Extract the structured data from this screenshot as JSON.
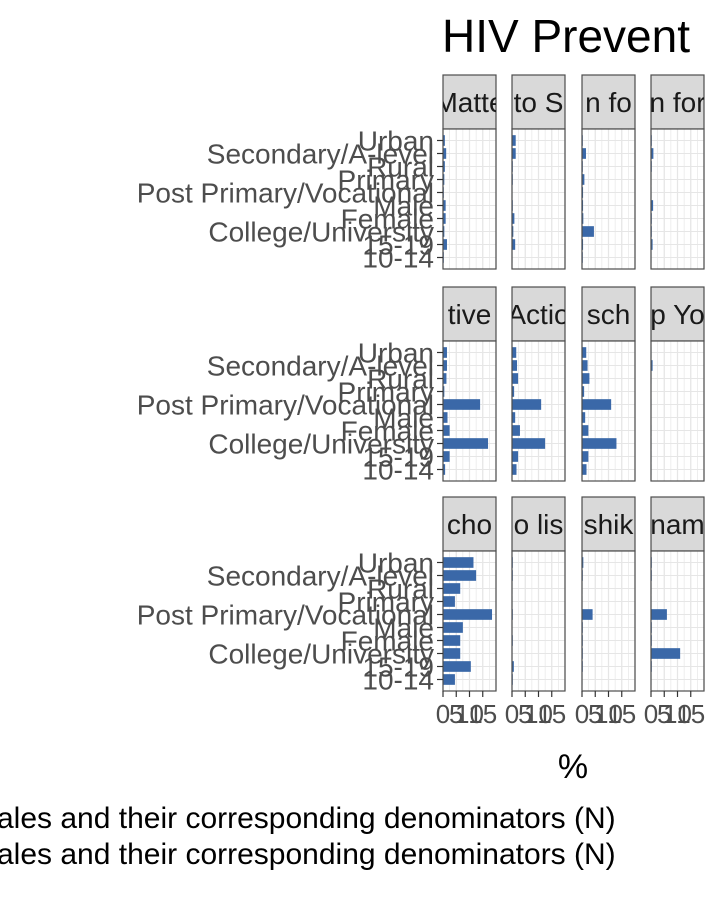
{
  "title": "HIV Prevent",
  "xlabel": "%",
  "caption_lines": [
    "ales and their corresponding denominators (N)",
    "ales and their corresponding denominators (N)"
  ],
  "colors": {
    "bar": "#3a68a8",
    "panel_bg": "#ffffff",
    "grid": "#e6e6e6",
    "panel_border": "#4d4d4d",
    "strip_bg": "#d9d9d9",
    "text": "#4d4d4d"
  },
  "chart_data": {
    "type": "bar",
    "orientation": "horizontal",
    "faceted": true,
    "grid": true,
    "xlim": [
      0,
      20
    ],
    "x_ticks": [
      "0",
      "5",
      "10",
      "15"
    ],
    "categories": [
      "Urban",
      "Secondary/A-level",
      "Rural",
      "Primary",
      "Post Primary/Vocational",
      "Male",
      "Female",
      "College/University",
      "15-19",
      "10-14"
    ],
    "category_labels_shown": [
      "Urban",
      "Secondary/A-level",
      "Rural",
      "Primary",
      "Post Primary/Vocational",
      "Male",
      "Female",
      "College/University",
      "15-19",
      "10-14"
    ],
    "panels": [
      {
        "strip": "Matte",
        "values": [
          0.7,
          1.2,
          0.7,
          0.5,
          0.3,
          1.0,
          1.0,
          0.5,
          1.5,
          0.3
        ]
      },
      {
        "strip": "to S",
        "values": [
          1.4,
          1.4,
          0.3,
          0.3,
          0.2,
          0.3,
          0.9,
          0.5,
          1.2,
          0.2
        ]
      },
      {
        "strip": "n fo",
        "values": [
          0.3,
          1.5,
          0.3,
          0.9,
          0.4,
          0.4,
          0.5,
          4.5,
          0.4,
          0.3
        ]
      },
      {
        "strip": "n for",
        "values": [
          0.3,
          0.9,
          0.3,
          0.2,
          0.2,
          0.8,
          0.3,
          0.3,
          0.6,
          0.2
        ]
      },
      {
        "strip": "tive",
        "values": [
          1.5,
          1.5,
          1.3,
          0.5,
          14.0,
          1.7,
          2.5,
          17.0,
          2.5,
          0.8
        ]
      },
      {
        "strip": "Actio",
        "values": [
          1.6,
          1.9,
          2.3,
          0.8,
          11.0,
          1.2,
          3.0,
          12.5,
          2.3,
          1.7
        ]
      },
      {
        "strip": "sch",
        "values": [
          1.6,
          2.1,
          2.8,
          0.8,
          11.0,
          1.2,
          2.4,
          13.0,
          2.4,
          1.7
        ]
      },
      {
        "strip": "p Yo",
        "values": [
          0.2,
          0.6,
          0.2,
          0.1,
          0.2,
          0.1,
          0.2,
          0.2,
          0.2,
          0.2
        ]
      },
      {
        "strip": "cho",
        "values": [
          11.5,
          12.5,
          6.5,
          4.5,
          18.5,
          7.5,
          6.5,
          6.5,
          10.5,
          4.5
        ]
      },
      {
        "strip": "o lis",
        "values": [
          0.3,
          0.3,
          0.2,
          0.2,
          0.3,
          0.2,
          0.3,
          0.2,
          0.7,
          0.3
        ]
      },
      {
        "strip": "shik",
        "values": [
          0.5,
          0.3,
          0.2,
          0.2,
          4.0,
          0.3,
          0.3,
          0.3,
          0.3,
          0.2
        ]
      },
      {
        "strip": "nam",
        "values": [
          0.3,
          0.3,
          0.2,
          0.2,
          6.0,
          0.3,
          0.3,
          11.0,
          0.3,
          0.2
        ]
      }
    ]
  }
}
